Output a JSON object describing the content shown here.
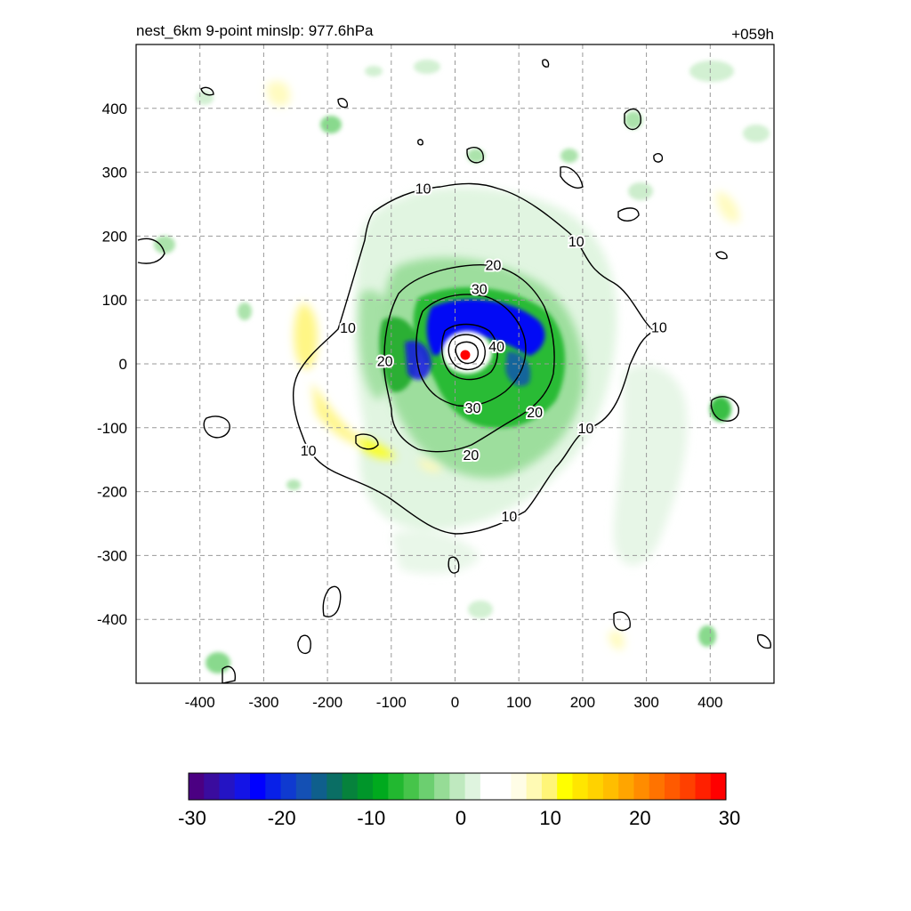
{
  "chart_data": {
    "type": "heatmap",
    "title": "nest_6km  9-point minslp: 977.6hPa",
    "time_label": "+059h",
    "xlabel": "",
    "ylabel": "",
    "xlim": [
      -500,
      500
    ],
    "ylim": [
      -500,
      500
    ],
    "grid": true,
    "x_ticks": [
      -400,
      -300,
      -200,
      -100,
      0,
      100,
      200,
      300,
      400
    ],
    "y_ticks": [
      400,
      300,
      200,
      100,
      0,
      -100,
      -200,
      -300,
      -400
    ],
    "center_marker": {
      "x": 16,
      "y": 14,
      "color": "#ff0000"
    },
    "contours": [
      {
        "level": 10,
        "label": "10"
      },
      {
        "level": 20,
        "label": "20"
      },
      {
        "level": 30,
        "label": "30"
      },
      {
        "level": 40,
        "label": "40"
      }
    ],
    "contour_labels": [
      {
        "text": "10",
        "x": -50,
        "y": 275
      },
      {
        "text": "10",
        "x": 190,
        "y": 192
      },
      {
        "text": "10",
        "x": 320,
        "y": 58
      },
      {
        "text": "10",
        "x": -168,
        "y": 57
      },
      {
        "text": "10",
        "x": 205,
        "y": -100
      },
      {
        "text": "10",
        "x": -230,
        "y": -135
      },
      {
        "text": "10",
        "x": 85,
        "y": -238
      },
      {
        "text": "20",
        "x": 60,
        "y": 155
      },
      {
        "text": "20",
        "x": -110,
        "y": 5
      },
      {
        "text": "20",
        "x": 125,
        "y": -75
      },
      {
        "text": "20",
        "x": 25,
        "y": -142
      },
      {
        "text": "30",
        "x": 38,
        "y": 118
      },
      {
        "text": "30",
        "x": 28,
        "y": -68
      },
      {
        "text": "40",
        "x": 65,
        "y": 28
      }
    ],
    "colorbar": {
      "min": -30,
      "max": 30,
      "ticks": [
        "-30",
        "-20",
        "-10",
        "0",
        "10",
        "20",
        "30"
      ],
      "colors": [
        "#4b0082",
        "#3a0c9e",
        "#2414c4",
        "#1414e6",
        "#0000ff",
        "#0820e8",
        "#0f3ad0",
        "#1450b4",
        "#0f5f8c",
        "#0a6e64",
        "#06823c",
        "#00962a",
        "#00aa1e",
        "#22b830",
        "#46c44a",
        "#6ccf70",
        "#96dc96",
        "#bfe9bf",
        "#dff4df",
        "#ffffff",
        "#ffffff",
        "#fffde6",
        "#fffab4",
        "#fff578",
        "#ffff00",
        "#ffe600",
        "#ffd200",
        "#ffbe00",
        "#ffa500",
        "#ff8c00",
        "#ff7300",
        "#ff5a00",
        "#ff4000",
        "#ff2000",
        "#ff0000"
      ]
    }
  }
}
